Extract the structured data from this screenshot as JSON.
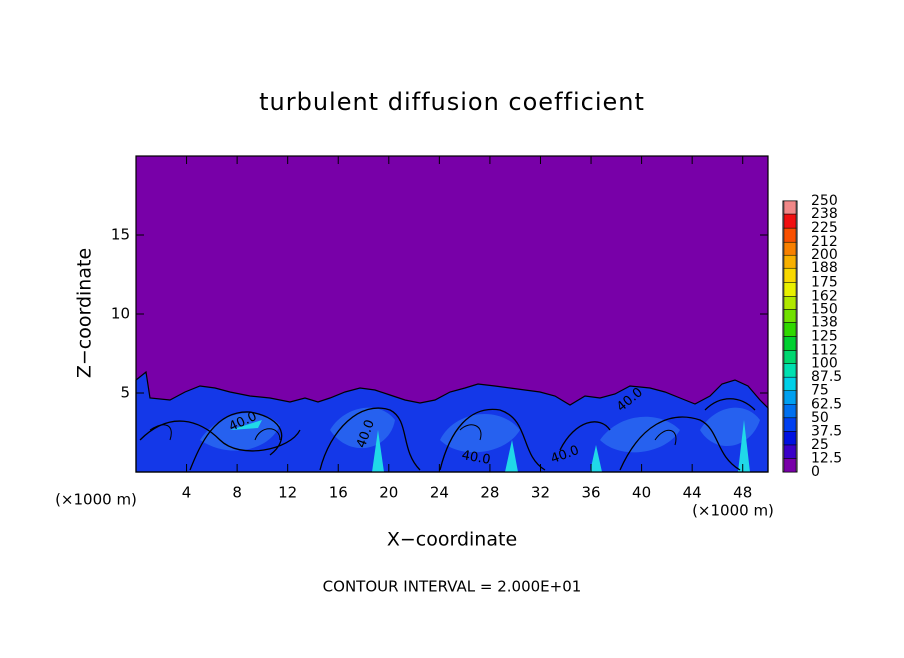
{
  "chart_data": {
    "type": "heatmap",
    "title": "turbulent diffusion coefficient",
    "x_label": "X−coordinate",
    "y_label": "Z−coordinate",
    "x_unit_left": "(×1000 m)",
    "x_unit_right": "(×1000 m)",
    "footer": "CONTOUR INTERVAL = 2.000E+01",
    "contour_labels": [
      "40.0",
      "40.0",
      "40.0",
      "40.0",
      "40.0"
    ],
    "xlim": [
      0,
      50
    ],
    "xticks": [
      4,
      8,
      12,
      16,
      20,
      24,
      28,
      32,
      36,
      40,
      44,
      48
    ],
    "ylim": [
      0,
      20
    ],
    "yticks": [
      5,
      10,
      15
    ],
    "colorbar": {
      "ticks": [
        0,
        12.5,
        25,
        37.5,
        50,
        62.5,
        75,
        87.5,
        100,
        112,
        125,
        138,
        150,
        162,
        175,
        188,
        200,
        212,
        225,
        238,
        250
      ],
      "colors": [
        "#7800a8",
        "#3a00c8",
        "#0010e0",
        "#0040f0",
        "#0070f0",
        "#00a0f0",
        "#00d0e8",
        "#00e0b0",
        "#00d870",
        "#00d030",
        "#30d800",
        "#70e000",
        "#b0e800",
        "#e8f000",
        "#f8d800",
        "#f8b000",
        "#f88000",
        "#f85000",
        "#f01010",
        "#f08888"
      ]
    }
  }
}
